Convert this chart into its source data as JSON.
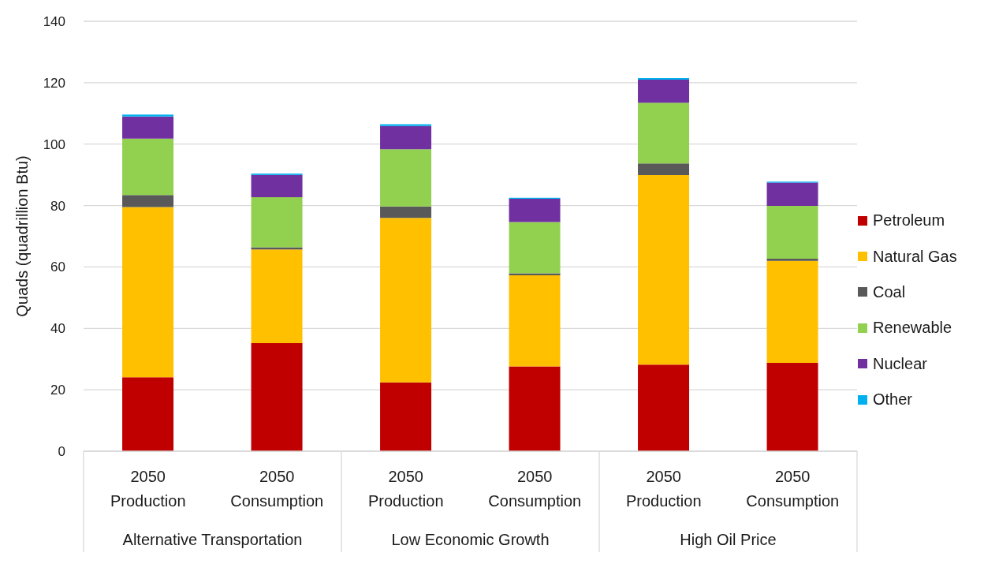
{
  "chart_data": {
    "type": "bar",
    "ylabel": "Quads (quadrillion Btu)",
    "categories": [
      "2050\nProduction",
      "2050\nConsumption",
      "2050\nProduction",
      "2050\nConsumption",
      "2050\nProduction",
      "2050\nConsumption"
    ],
    "annotations": [
      "Alternative Transportation",
      "Low Economic Growth",
      "High Oil Price"
    ],
    "stacked": true,
    "series": [
      {
        "name": "Petroleum",
        "color": "#c00000",
        "values": [
          24.1,
          35.2,
          22.4,
          27.6,
          28.2,
          28.8
        ]
      },
      {
        "name": "Natural Gas",
        "color": "#ffc000",
        "values": [
          55.4,
          30.5,
          53.6,
          29.7,
          61.7,
          33.2
        ]
      },
      {
        "name": "Coal",
        "color": "#595959",
        "values": [
          3.9,
          0.7,
          3.7,
          0.6,
          3.8,
          0.7
        ]
      },
      {
        "name": "Renewable",
        "color": "#92d050",
        "values": [
          18.4,
          16.3,
          18.6,
          16.7,
          19.8,
          17.2
        ]
      },
      {
        "name": "Nuclear",
        "color": "#7030a0",
        "values": [
          7.2,
          7.3,
          7.6,
          7.6,
          7.5,
          7.6
        ]
      },
      {
        "name": "Other",
        "color": "#00b0f0",
        "values": [
          0.6,
          0.4,
          0.6,
          0.3,
          0.5,
          0.3
        ]
      }
    ],
    "ylim": [
      0,
      140
    ],
    "yticks": [
      0,
      20,
      40,
      60,
      80,
      100,
      120,
      140
    ],
    "grid": "y",
    "legend": "right"
  }
}
